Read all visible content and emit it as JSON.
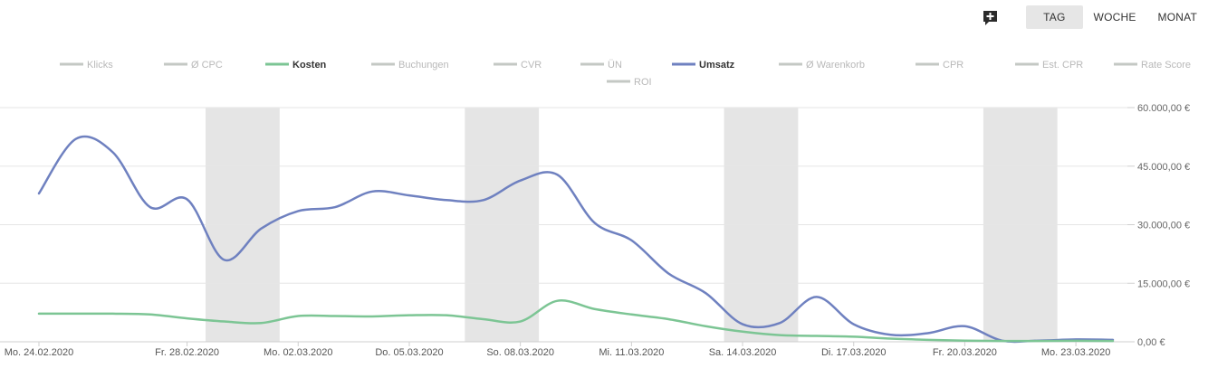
{
  "toolbar": {
    "add_icon": "comment-plus-icon",
    "period_buttons": [
      {
        "label": "TAG",
        "active": true
      },
      {
        "label": "WOCHE",
        "active": false
      },
      {
        "label": "MONAT",
        "active": false
      }
    ]
  },
  "chart_data": {
    "type": "line",
    "legend": [
      {
        "name": "Klicks",
        "active": false
      },
      {
        "name": "Ø CPC",
        "active": false
      },
      {
        "name": "Kosten",
        "active": true
      },
      {
        "name": "Buchungen",
        "active": false
      },
      {
        "name": "CVR",
        "active": false
      },
      {
        "name": "ÜN",
        "active": false
      },
      {
        "name": "Umsatz",
        "active": true
      },
      {
        "name": "Ø Warenkorb",
        "active": false
      },
      {
        "name": "CPR",
        "active": false
      },
      {
        "name": "Est. CPR",
        "active": false
      },
      {
        "name": "Rate Score",
        "active": false
      },
      {
        "name": "ROI",
        "active": false
      }
    ],
    "x_dates": [
      "24.02.2020",
      "25.02.2020",
      "26.02.2020",
      "27.02.2020",
      "28.02.2020",
      "29.02.2020",
      "01.03.2020",
      "02.03.2020",
      "03.03.2020",
      "04.03.2020",
      "05.03.2020",
      "06.03.2020",
      "07.03.2020",
      "08.03.2020",
      "09.03.2020",
      "10.03.2020",
      "11.03.2020",
      "12.03.2020",
      "13.03.2020",
      "14.03.2020",
      "15.03.2020",
      "16.03.2020",
      "17.03.2020",
      "18.03.2020",
      "19.03.2020",
      "20.03.2020",
      "21.03.2020",
      "22.03.2020",
      "23.03.2020",
      "24.03.2020"
    ],
    "x_tick_labels": [
      "Mo. 24.02.2020",
      "Fr. 28.02.2020",
      "Mo. 02.03.2020",
      "Do. 05.03.2020",
      "So. 08.03.2020",
      "Mi. 11.03.2020",
      "Sa. 14.03.2020",
      "Di. 17.03.2020",
      "Fr. 20.03.2020",
      "Mo. 23.03.2020"
    ],
    "x_tick_indices": [
      0,
      4,
      7,
      10,
      13,
      16,
      19,
      22,
      25,
      28
    ],
    "weekend_bands": [
      [
        5,
        6
      ],
      [
        12,
        13
      ],
      [
        19,
        20
      ],
      [
        26,
        27
      ]
    ],
    "y_ticks": [
      "0,00 €",
      "15.000,00 €",
      "30.000,00 €",
      "45.000,00 €",
      "60.000,00 €"
    ],
    "ylim": [
      0,
      60000
    ],
    "series": [
      {
        "name": "Umsatz",
        "color": "#6f81c0",
        "values": [
          38000,
          52000,
          48500,
          34500,
          36500,
          21000,
          29000,
          33500,
          34500,
          38500,
          37500,
          36300,
          36300,
          41300,
          42800,
          30500,
          26000,
          17500,
          12500,
          4500,
          4800,
          11500,
          4500,
          1800,
          2200,
          4000,
          300,
          300,
          600,
          500
        ]
      },
      {
        "name": "Kosten",
        "color": "#7cc594",
        "values": [
          7200,
          7200,
          7200,
          7000,
          6000,
          5200,
          4800,
          6600,
          6600,
          6500,
          6800,
          6800,
          5800,
          5200,
          10500,
          8400,
          7000,
          5800,
          4000,
          2600,
          1700,
          1500,
          1300,
          800,
          500,
          300,
          200,
          200,
          250,
          200
        ]
      }
    ],
    "grid": true,
    "legend_position": "top"
  }
}
